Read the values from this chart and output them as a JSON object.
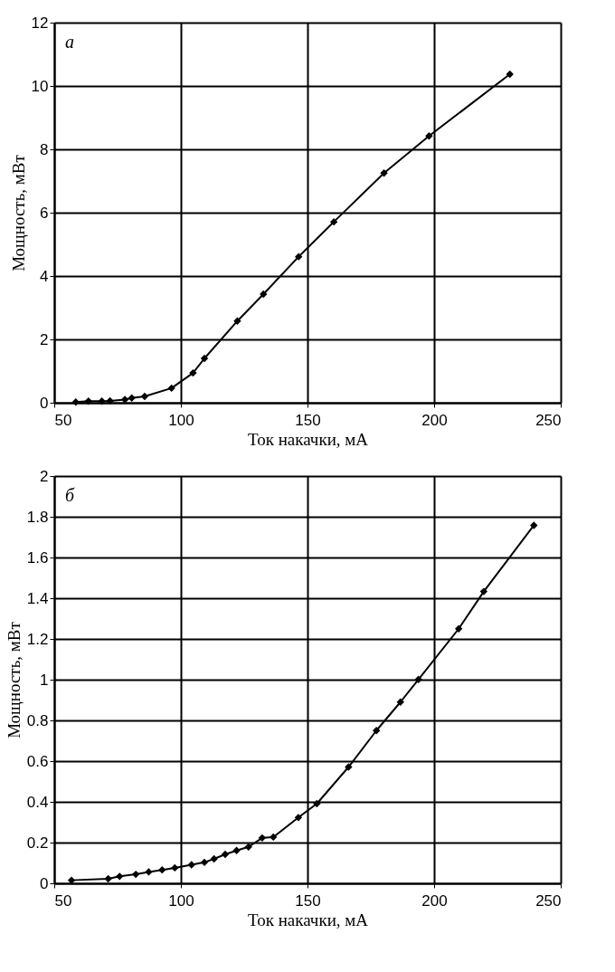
{
  "chart_data": [
    {
      "type": "line",
      "xlabel": "Ток накачки, мА",
      "ylabel": "Мощность, мВт",
      "annotations": [
        "а"
      ],
      "marker": "diamond",
      "line_style": "solid",
      "grid": true,
      "xlim": [
        50,
        250
      ],
      "xticks": [
        50,
        100,
        150,
        200,
        250
      ],
      "ylim": [
        0,
        12
      ],
      "yticks": [
        0,
        2,
        4,
        6,
        8,
        10,
        12
      ],
      "series": [
        {
          "color": "#000000",
          "x": [
            58.5,
            63.5,
            68.8,
            72,
            77.9,
            80.6,
            85.7,
            96.3,
            104.8,
            109.3,
            122.3,
            132.6,
            146.5,
            160.4,
            180.2,
            198,
            229.9
          ],
          "values": [
            0.02,
            0.05,
            0.05,
            0.06,
            0.1,
            0.15,
            0.2,
            0.46,
            0.94,
            1.4,
            2.58,
            3.43,
            4.61,
            5.71,
            7.25,
            8.42,
            10.37
          ]
        }
      ]
    },
    {
      "type": "line",
      "xlabel": "Ток накачки, мА",
      "ylabel": "Мощность, мВт",
      "annotations": [
        "б"
      ],
      "marker": "diamond",
      "line_style": "solid",
      "grid": true,
      "xlim": [
        50,
        250
      ],
      "xticks": [
        50,
        100,
        150,
        200,
        250
      ],
      "ylim": [
        0,
        2
      ],
      "yticks": [
        0,
        0.2,
        0.4,
        0.6,
        0.8,
        1,
        1.2,
        1.4,
        1.6,
        1.8,
        2
      ],
      "series": [
        {
          "color": "#000000",
          "x": [
            56.8,
            71.3,
            75.8,
            82.2,
            87.3,
            92.6,
            97.6,
            104.2,
            109.3,
            113.1,
            117.5,
            122,
            126.7,
            132.1,
            136.5,
            146.4,
            153.7,
            166.2,
            177.2,
            186.7,
            193.8,
            209.7,
            219.6,
            239.4
          ],
          "values": [
            0.015,
            0.022,
            0.034,
            0.044,
            0.056,
            0.066,
            0.076,
            0.091,
            0.103,
            0.12,
            0.142,
            0.161,
            0.179,
            0.223,
            0.227,
            0.323,
            0.391,
            0.571,
            0.75,
            0.89,
            1.001,
            1.25,
            1.433,
            1.758
          ]
        }
      ]
    }
  ]
}
